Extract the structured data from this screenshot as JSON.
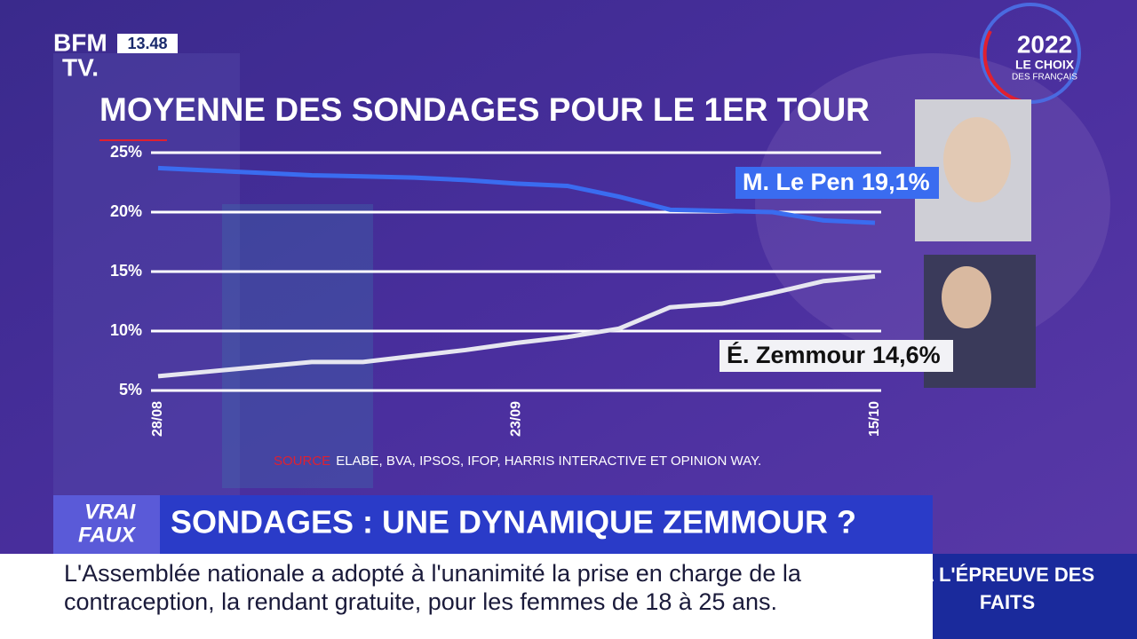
{
  "chart_data": {
    "type": "line",
    "title": "MOYENNE DES SONDAGES POUR LE 1ER TOUR",
    "categories": [
      "28/08",
      null,
      null,
      null,
      null,
      null,
      null,
      "23/09",
      null,
      null,
      null,
      null,
      null,
      null,
      "15/10"
    ],
    "series": [
      {
        "name": "M. Le Pen",
        "color": "#3a6cf0",
        "values": [
          23.7,
          23.5,
          23.3,
          23.1,
          23.0,
          22.9,
          22.7,
          22.4,
          22.2,
          21.3,
          20.2,
          20.1,
          20.0,
          19.3,
          19.1
        ],
        "value_labels": [
          null,
          null,
          null,
          null,
          null,
          null,
          null,
          null,
          null,
          null,
          null,
          null,
          null,
          null,
          "19,1%"
        ]
      },
      {
        "name": "É. Zemmour",
        "color": "#e6e6f0",
        "values": [
          6.2,
          6.6,
          7.0,
          7.4,
          7.4,
          7.9,
          8.4,
          9.0,
          9.5,
          10.2,
          12.0,
          12.3,
          13.2,
          14.2,
          14.6
        ],
        "value_labels": [
          null,
          null,
          null,
          null,
          null,
          null,
          null,
          null,
          null,
          null,
          null,
          null,
          null,
          null,
          "14,6%"
        ]
      }
    ],
    "ylim": [
      5,
      25
    ],
    "yticks": [
      {
        "value": 5,
        "label": "5%"
      },
      {
        "value": 10,
        "label": "10%"
      },
      {
        "value": 15,
        "label": "15%"
      },
      {
        "value": 20,
        "label": "20%"
      },
      {
        "value": 25,
        "label": "25%"
      }
    ],
    "grid": true,
    "source_label": "SOURCE",
    "source": "ELABE, BVA, IPSOS, IFOP, HARRIS INTERACTIVE ET OPINION WAY."
  },
  "channel": {
    "logo_line1": "BFM",
    "logo_line2": "TV.",
    "time": "13.48"
  },
  "badge": {
    "year": "2022",
    "line1": "LE CHOIX",
    "line2": "DES FRANÇAIS"
  },
  "banner": {
    "tag_top": "VRAI",
    "tag_bottom": "FAUX",
    "headline": "SONDAGES : UNE DYNAMIQUE ZEMMOUR ?"
  },
  "ticker": {
    "lines": [
      "L'Assemblée nationale a adopté à l'unanimité la prise en charge de la",
      "contraception, la rendant gratuite, pour les femmes de 18 à 25 ans."
    ]
  },
  "segment": {
    "lines": [
      "A L'ÉPREUVE DES",
      "FAITS"
    ]
  }
}
